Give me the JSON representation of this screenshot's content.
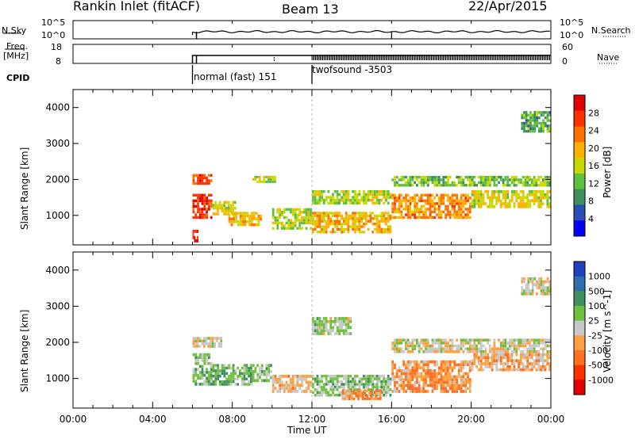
{
  "header": {
    "title": "Rankin Inlet (fitACF)",
    "beam": "Beam 13",
    "date": "22/Apr/2015"
  },
  "upper_panels": {
    "nsky_label": "N.Sky",
    "nsearch_label": "N.Search",
    "nsky_ticks": [
      "10^5",
      "10^0"
    ],
    "nsearch_ticks": [
      "10^5",
      "10^0"
    ],
    "freq_label": "Freq.",
    "freq_unit": "[MHz]",
    "freq_ticks": [
      "18",
      "8"
    ],
    "nave_label": "Nave",
    "nave_ticks": [
      "60",
      "0"
    ],
    "cpid_label": "CPID",
    "cpid_segments": [
      {
        "label": "normal (fast) 151",
        "start_hour": 6.0
      },
      {
        "label": "twofsound -3503",
        "start_hour": 12.0
      }
    ]
  },
  "x_axis": {
    "label": "Time UT",
    "ticks": [
      "00:00",
      "04:00",
      "08:00",
      "12:00",
      "16:00",
      "20:00",
      "00:00"
    ],
    "tick_hours": [
      0,
      4,
      8,
      12,
      16,
      20,
      24
    ]
  },
  "colors": {
    "power_scale": [
      "#0000ff",
      "#2a4fb4",
      "#3f8f5c",
      "#5fbf3f",
      "#c8d800",
      "#ffb000",
      "#ff7000",
      "#ff3000",
      "#e00000"
    ],
    "velocity_scale": [
      "#2040c0",
      "#2f6fb0",
      "#3f9060",
      "#70c040",
      "#c8c8c8",
      "#ffa040",
      "#ff7020",
      "#ff3000",
      "#e00000"
    ]
  },
  "chart_data": [
    {
      "type": "heatmap",
      "name": "power",
      "ylabel": "Slant Range [km]",
      "xlabel": "",
      "xlim": [
        0,
        24
      ],
      "ylim": [
        180,
        4500
      ],
      "yticks": [
        1000,
        2000,
        3000,
        4000
      ],
      "colorbar": {
        "label": "Power [dB]",
        "ticks": [
          "28",
          "24",
          "20",
          "16",
          "12",
          "8",
          "4"
        ],
        "range": [
          0,
          30
        ]
      },
      "regions": [
        {
          "t": [
            6.0,
            7.0
          ],
          "r": [
            900,
            1600
          ],
          "value": 26
        },
        {
          "t": [
            6.0,
            7.0
          ],
          "r": [
            1850,
            2150
          ],
          "value": 24
        },
        {
          "t": [
            6.0,
            6.3
          ],
          "r": [
            250,
            600
          ],
          "value": 27
        },
        {
          "t": [
            7.0,
            8.2
          ],
          "r": [
            1000,
            1400
          ],
          "value": 16
        },
        {
          "t": [
            7.8,
            9.5
          ],
          "r": [
            700,
            1100
          ],
          "value": 18
        },
        {
          "t": [
            9.0,
            10.2
          ],
          "r": [
            1900,
            2100
          ],
          "value": 14
        },
        {
          "t": [
            10.0,
            12.0
          ],
          "r": [
            600,
            1200
          ],
          "value": 14
        },
        {
          "t": [
            12.0,
            16.0
          ],
          "r": [
            500,
            1100
          ],
          "value": 18
        },
        {
          "t": [
            12.0,
            16.0
          ],
          "r": [
            1300,
            1700
          ],
          "value": 14
        },
        {
          "t": [
            16.0,
            20.0
          ],
          "r": [
            900,
            1600
          ],
          "value": 20
        },
        {
          "t": [
            16.0,
            24.0
          ],
          "r": [
            1800,
            2100
          ],
          "value": 12
        },
        {
          "t": [
            20.0,
            24.0
          ],
          "r": [
            1200,
            1700
          ],
          "value": 16
        },
        {
          "t": [
            22.5,
            24.0
          ],
          "r": [
            3300,
            3900
          ],
          "value": 10
        }
      ]
    },
    {
      "type": "heatmap",
      "name": "velocity",
      "ylabel": "Slant Range [km]",
      "xlabel": "Time UT",
      "xlim": [
        0,
        24
      ],
      "ylim": [
        180,
        4500
      ],
      "yticks": [
        1000,
        2000,
        3000,
        4000
      ],
      "colorbar": {
        "label": "Velocity [m s^-1]",
        "ticks": [
          "1000",
          "500",
          "100",
          "25",
          "-25",
          "-100",
          "-500",
          "-1000"
        ],
        "range": [
          -1000,
          1000
        ]
      },
      "regions": [
        {
          "t": [
            6.0,
            7.0
          ],
          "r": [
            800,
            1700
          ],
          "value": 200
        },
        {
          "t": [
            6.0,
            7.5
          ],
          "r": [
            1850,
            2150
          ],
          "value": 0
        },
        {
          "t": [
            7.0,
            9.0
          ],
          "r": [
            800,
            1400
          ],
          "value": 300
        },
        {
          "t": [
            9.0,
            10.0
          ],
          "r": [
            900,
            1400
          ],
          "value": 150
        },
        {
          "t": [
            10.0,
            12.0
          ],
          "r": [
            600,
            1100
          ],
          "value": -150
        },
        {
          "t": [
            12.0,
            16.0
          ],
          "r": [
            500,
            1100
          ],
          "value": 200
        },
        {
          "t": [
            13.5,
            15.5
          ],
          "r": [
            400,
            700
          ],
          "value": -300
        },
        {
          "t": [
            16.0,
            20.0
          ],
          "r": [
            600,
            1500
          ],
          "value": -300
        },
        {
          "t": [
            16.0,
            24.0
          ],
          "r": [
            1700,
            2100
          ],
          "value": 0
        },
        {
          "t": [
            20.0,
            24.0
          ],
          "r": [
            1200,
            1700
          ],
          "value": -200
        },
        {
          "t": [
            12.0,
            14.0
          ],
          "r": [
            2200,
            2700
          ],
          "value": 100
        },
        {
          "t": [
            22.5,
            24.0
          ],
          "r": [
            3300,
            3800
          ],
          "value": 0
        }
      ]
    }
  ]
}
